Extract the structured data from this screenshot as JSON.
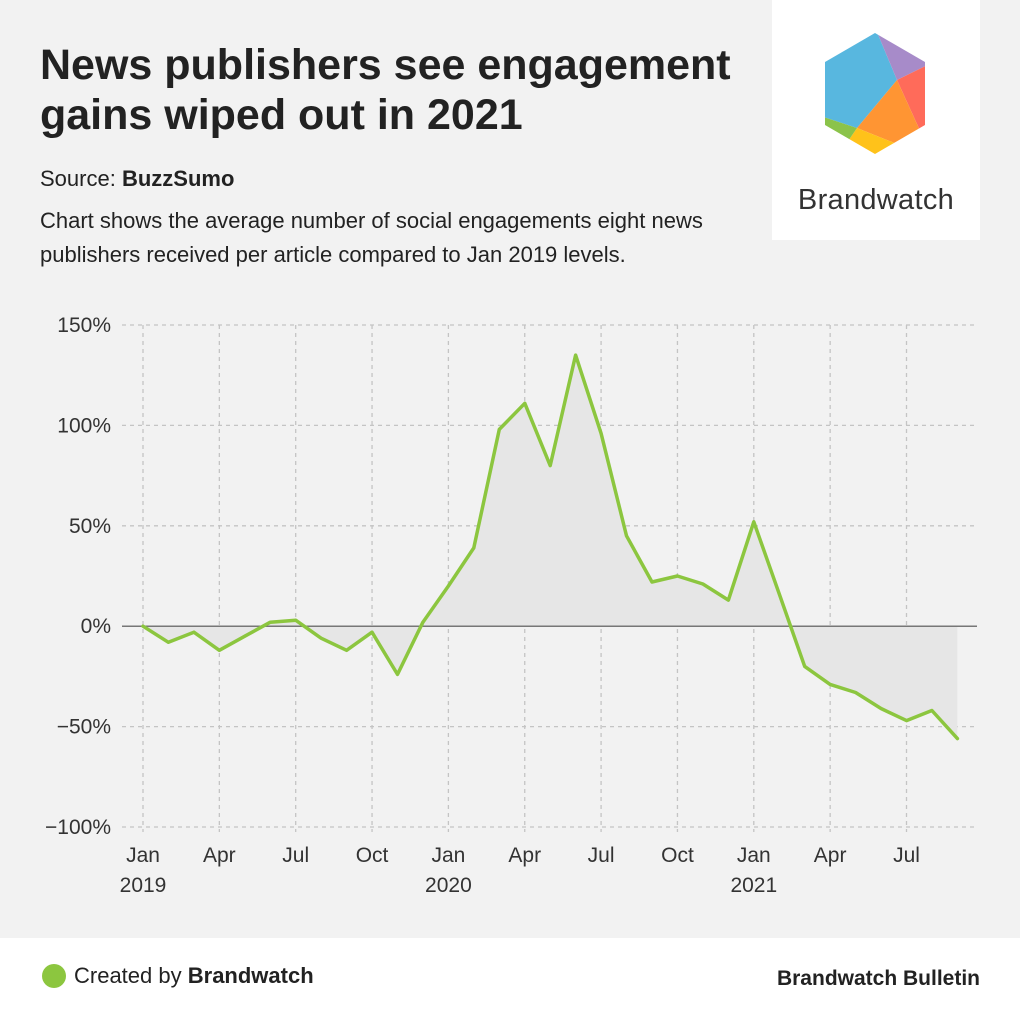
{
  "header": {
    "title": "News publishers see engagement gains wiped out in 2021",
    "source_label": "Source:",
    "source_name": "BuzzSumo",
    "subtitle": "Chart shows the average number of social engagements eight news publishers received per article compared to Jan 2019 levels."
  },
  "logo": {
    "wordmark": "Brandwatch",
    "icon": "brandwatch-hexagon-logo",
    "colors": [
      "#58b7df",
      "#a78bc9",
      "#ff6b5a",
      "#ff9533",
      "#ffc21a",
      "#8bc34a"
    ]
  },
  "footer": {
    "created_by_label": "Created by",
    "created_by_name": "Brandwatch",
    "publication": "Brandwatch Bulletin"
  },
  "colors": {
    "line": "#8cc63f",
    "area": "#e6e6e6",
    "grid": "#c4c4c4",
    "zero_line": "#777777"
  },
  "chart_data": {
    "type": "area",
    "xlabel": "",
    "ylabel": "",
    "ylim": [
      -100,
      150
    ],
    "y_ticks": [
      150,
      100,
      50,
      0,
      -50,
      -100
    ],
    "y_tick_labels": [
      "150%",
      "100%",
      "50%",
      "0%",
      "−50%",
      "−100%"
    ],
    "x_ticks": [
      {
        "index": 0,
        "month": "Jan",
        "year": "2019"
      },
      {
        "index": 3,
        "month": "Apr",
        "year": ""
      },
      {
        "index": 6,
        "month": "Jul",
        "year": ""
      },
      {
        "index": 9,
        "month": "Oct",
        "year": ""
      },
      {
        "index": 12,
        "month": "Jan",
        "year": "2020"
      },
      {
        "index": 15,
        "month": "Apr",
        "year": ""
      },
      {
        "index": 18,
        "month": "Jul",
        "year": ""
      },
      {
        "index": 21,
        "month": "Oct",
        "year": ""
      },
      {
        "index": 24,
        "month": "Jan",
        "year": "2021"
      },
      {
        "index": 27,
        "month": "Apr",
        "year": ""
      },
      {
        "index": 30,
        "month": "Jul",
        "year": ""
      }
    ],
    "x": [
      "2019-01",
      "2019-02",
      "2019-03",
      "2019-04",
      "2019-05",
      "2019-06",
      "2019-07",
      "2019-08",
      "2019-09",
      "2019-10",
      "2019-11",
      "2019-12",
      "2020-01",
      "2020-02",
      "2020-03",
      "2020-04",
      "2020-05",
      "2020-06",
      "2020-07",
      "2020-08",
      "2020-09",
      "2020-10",
      "2020-11",
      "2020-12",
      "2021-01",
      "2021-02",
      "2021-03",
      "2021-04",
      "2021-05",
      "2021-06",
      "2021-07",
      "2021-08",
      "2021-09"
    ],
    "values": [
      0,
      -8,
      -3,
      -12,
      -5,
      2,
      3,
      -6,
      -12,
      -3,
      -24,
      2,
      20,
      39,
      98,
      111,
      80,
      135,
      96,
      45,
      22,
      25,
      21,
      13,
      52,
      16,
      -20,
      -29,
      -33,
      -41,
      -47,
      -42,
      -56
    ],
    "grid": true,
    "legend": "none"
  }
}
